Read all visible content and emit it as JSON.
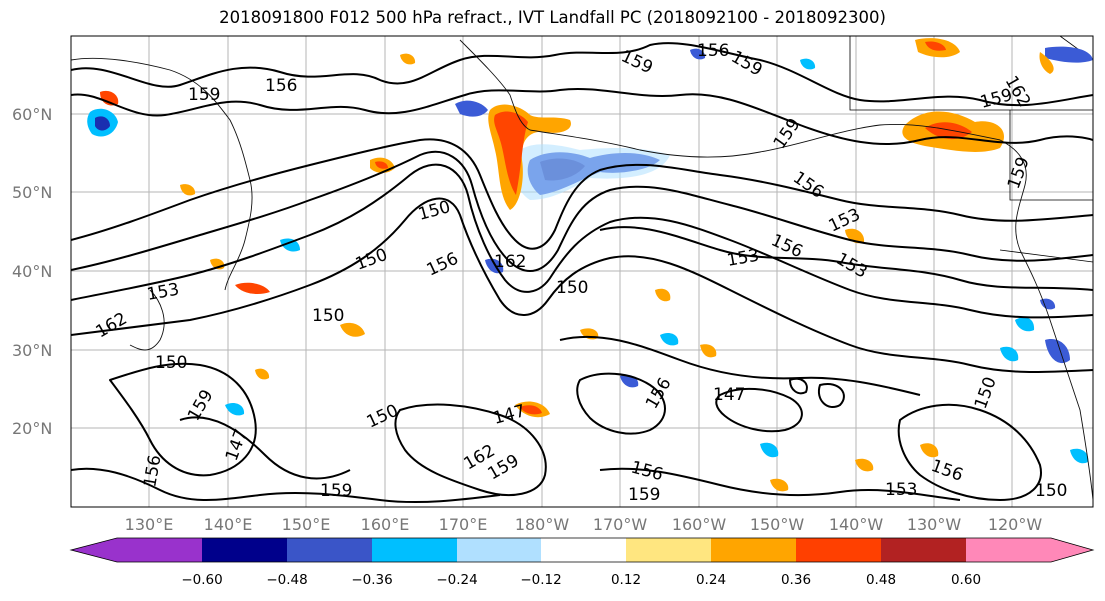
{
  "title": "2018091800 F012 500 hPa refract., IVT Landfall PC (2018092100 - 2018092300)",
  "map": {
    "latitude_labels": [
      "60°N",
      "50°N",
      "40°N",
      "30°N",
      "20°N"
    ],
    "longitude_labels": [
      "130°E",
      "140°E",
      "150°E",
      "160°E",
      "170°E",
      "180°W",
      "170°W",
      "160°W",
      "150°W",
      "140°W",
      "130°W",
      "120°W"
    ],
    "contour_labels": [
      {
        "text": "159"
      },
      {
        "text": "156"
      },
      {
        "text": "156"
      },
      {
        "text": "159"
      },
      {
        "text": "159"
      },
      {
        "text": "162"
      },
      {
        "text": "159"
      },
      {
        "text": "159"
      },
      {
        "text": "156"
      },
      {
        "text": "159"
      },
      {
        "text": "150"
      },
      {
        "text": "150"
      },
      {
        "text": "156"
      },
      {
        "text": "162"
      },
      {
        "text": "150"
      },
      {
        "text": "153"
      },
      {
        "text": "156"
      },
      {
        "text": "153"
      },
      {
        "text": "153"
      },
      {
        "text": "150"
      },
      {
        "text": "147"
      },
      {
        "text": "150"
      },
      {
        "text": "147"
      },
      {
        "text": "159"
      },
      {
        "text": "156"
      },
      {
        "text": "162"
      },
      {
        "text": "159"
      },
      {
        "text": "156"
      },
      {
        "text": "159"
      },
      {
        "text": "147"
      },
      {
        "text": "156"
      },
      {
        "text": "150"
      },
      {
        "text": "162"
      },
      {
        "text": "153"
      },
      {
        "text": "150"
      },
      {
        "text": "159"
      },
      {
        "text": "156"
      },
      {
        "text": "153"
      },
      {
        "text": "150"
      }
    ],
    "anomaly_colors": {
      "strong_negative": "#1a2fb0",
      "negative": "#3b5bd6",
      "weak_negative": "#00bfff",
      "faint_negative": "#aee0ff",
      "faint_positive": "#ffe98a",
      "positive": "#ffa500",
      "strong_positive": "#ff4500"
    }
  },
  "colorbar": {
    "ticks": [
      "−0.60",
      "−0.48",
      "−0.36",
      "−0.24",
      "−0.12",
      "0.12",
      "0.24",
      "0.36",
      "0.48",
      "0.60"
    ],
    "colors": [
      "#9932cc",
      "#00008b",
      "#3a55c8",
      "#00bfff",
      "#b0e0ff",
      "#ffffff",
      "#ffe680",
      "#ffa500",
      "#ff4000",
      "#b22222",
      "#ff88b8"
    ]
  }
}
